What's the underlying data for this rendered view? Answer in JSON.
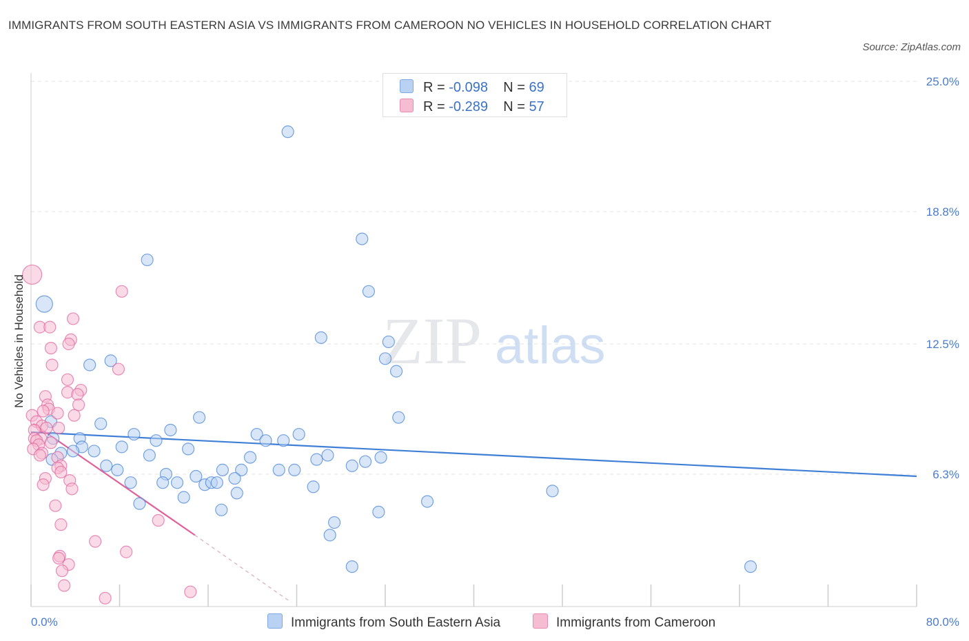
{
  "title": "IMMIGRANTS FROM SOUTH EASTERN ASIA VS IMMIGRANTS FROM CAMEROON NO VEHICLES IN HOUSEHOLD CORRELATION CHART",
  "source": "Source: ZipAtlas.com",
  "watermark": {
    "zip": "ZIP",
    "atlas": "atlas"
  },
  "legend": {
    "blue": {
      "r_label": "R =",
      "r_value": "-0.098",
      "n_label": "N =",
      "n_value": "69"
    },
    "pink": {
      "r_label": "R =",
      "r_value": "-0.289",
      "n_label": "N =",
      "n_value": "57"
    }
  },
  "colors": {
    "blue": "#3f7fd6",
    "blue_fill": "#b9d2f3",
    "pink": "#e0609a",
    "pink_fill": "#f6bcd2",
    "tick": "#4a7cc9"
  },
  "chart_data": {
    "type": "scatter",
    "title": "IMMIGRANTS FROM SOUTH EASTERN ASIA VS IMMIGRANTS FROM CAMEROON NO VEHICLES IN HOUSEHOLD CORRELATION CHART",
    "xlabel": "",
    "ylabel": "No Vehicles in Household",
    "xlim": [
      0,
      80
    ],
    "ylim": [
      0,
      25
    ],
    "x_tick_labels": [
      "0.0%",
      "80.0%"
    ],
    "y_ticks": [
      6.3,
      12.5,
      18.8,
      25.0
    ],
    "y_tick_labels": [
      "6.3%",
      "12.5%",
      "18.8%",
      "25.0%"
    ],
    "grid": true,
    "legend_position": "top-center",
    "series": [
      {
        "name": "Immigrants from South Eastern Asia",
        "color": "#3f7fd6",
        "trend": {
          "x": [
            0,
            80
          ],
          "y": [
            8.3,
            6.2
          ]
        },
        "points": [
          [
            1.2,
            14.4
          ],
          [
            10.5,
            16.5
          ],
          [
            23.2,
            22.6
          ],
          [
            29.9,
            17.5
          ],
          [
            30.5,
            15.0
          ],
          [
            26.2,
            12.8
          ],
          [
            32.3,
            12.6
          ],
          [
            32.0,
            11.8
          ],
          [
            33.0,
            11.2
          ],
          [
            7.2,
            11.7
          ],
          [
            5.3,
            11.5
          ],
          [
            33.2,
            9.0
          ],
          [
            15.2,
            9.0
          ],
          [
            6.3,
            8.7
          ],
          [
            1.8,
            8.8
          ],
          [
            12.6,
            8.4
          ],
          [
            20.4,
            8.2
          ],
          [
            9.3,
            8.2
          ],
          [
            24.2,
            8.2
          ],
          [
            21.2,
            7.9
          ],
          [
            22.8,
            7.9
          ],
          [
            11.3,
            7.9
          ],
          [
            2.0,
            8.0
          ],
          [
            4.4,
            8.0
          ],
          [
            4.6,
            7.6
          ],
          [
            8.2,
            7.6
          ],
          [
            14.2,
            7.5
          ],
          [
            5.7,
            7.4
          ],
          [
            3.8,
            7.4
          ],
          [
            2.7,
            7.3
          ],
          [
            10.7,
            7.2
          ],
          [
            19.8,
            7.1
          ],
          [
            26.8,
            7.2
          ],
          [
            31.6,
            7.1
          ],
          [
            1.9,
            7.0
          ],
          [
            25.8,
            7.0
          ],
          [
            30.2,
            6.9
          ],
          [
            6.8,
            6.7
          ],
          [
            29.0,
            6.7
          ],
          [
            7.8,
            6.5
          ],
          [
            17.3,
            6.5
          ],
          [
            19.0,
            6.5
          ],
          [
            22.4,
            6.5
          ],
          [
            23.8,
            6.5
          ],
          [
            12.2,
            6.3
          ],
          [
            14.9,
            6.2
          ],
          [
            18.4,
            6.1
          ],
          [
            9.0,
            5.9
          ],
          [
            11.9,
            5.9
          ],
          [
            13.2,
            5.9
          ],
          [
            15.7,
            5.8
          ],
          [
            16.3,
            5.9
          ],
          [
            16.8,
            5.9
          ],
          [
            25.5,
            5.7
          ],
          [
            18.6,
            5.4
          ],
          [
            47.1,
            5.5
          ],
          [
            13.8,
            5.2
          ],
          [
            35.8,
            5.0
          ],
          [
            9.8,
            4.9
          ],
          [
            17.2,
            4.6
          ],
          [
            31.4,
            4.5
          ],
          [
            27.4,
            4.0
          ],
          [
            27.0,
            3.4
          ],
          [
            29.0,
            1.9
          ],
          [
            65.0,
            1.9
          ]
        ]
      },
      {
        "name": "Immigrants from Cameroon",
        "color": "#e0609a",
        "trend": {
          "x": [
            0.2,
            14.8
          ],
          "y": [
            8.7,
            3.4
          ]
        },
        "trend_ext": {
          "x": [
            14.8,
            23.5
          ],
          "y": [
            3.4,
            0.2
          ]
        },
        "points": [
          [
            0.1,
            15.8
          ],
          [
            8.2,
            15.0
          ],
          [
            3.8,
            13.7
          ],
          [
            0.8,
            13.3
          ],
          [
            1.7,
            13.3
          ],
          [
            3.6,
            12.7
          ],
          [
            3.4,
            12.5
          ],
          [
            1.8,
            12.3
          ],
          [
            1.9,
            11.5
          ],
          [
            7.9,
            11.3
          ],
          [
            3.3,
            10.8
          ],
          [
            4.5,
            10.3
          ],
          [
            3.3,
            10.2
          ],
          [
            4.2,
            10.1
          ],
          [
            1.3,
            10.0
          ],
          [
            1.5,
            9.6
          ],
          [
            4.3,
            9.6
          ],
          [
            1.6,
            9.4
          ],
          [
            1.1,
            9.3
          ],
          [
            2.4,
            9.2
          ],
          [
            3.9,
            9.1
          ],
          [
            0.1,
            9.1
          ],
          [
            0.5,
            8.8
          ],
          [
            1.0,
            8.6
          ],
          [
            2.5,
            8.5
          ],
          [
            0.3,
            8.4
          ],
          [
            1.4,
            8.5
          ],
          [
            0.9,
            8.0
          ],
          [
            0.3,
            8.0
          ],
          [
            0.5,
            7.9
          ],
          [
            1.8,
            7.8
          ],
          [
            0.7,
            7.7
          ],
          [
            0.2,
            7.5
          ],
          [
            1.0,
            7.3
          ],
          [
            2.4,
            7.1
          ],
          [
            0.8,
            7.2
          ],
          [
            2.7,
            6.7
          ],
          [
            2.4,
            6.6
          ],
          [
            2.7,
            6.4
          ],
          [
            1.3,
            6.1
          ],
          [
            3.5,
            6.0
          ],
          [
            1.1,
            5.8
          ],
          [
            3.7,
            5.6
          ],
          [
            2.2,
            4.8
          ],
          [
            2.7,
            3.9
          ],
          [
            11.5,
            4.1
          ],
          [
            5.8,
            3.1
          ],
          [
            8.6,
            2.6
          ],
          [
            2.6,
            2.4
          ],
          [
            2.5,
            2.3
          ],
          [
            3.4,
            2.0
          ],
          [
            2.8,
            1.7
          ],
          [
            3.0,
            1.0
          ],
          [
            14.4,
            0.7
          ],
          [
            6.7,
            0.4
          ]
        ]
      }
    ]
  }
}
